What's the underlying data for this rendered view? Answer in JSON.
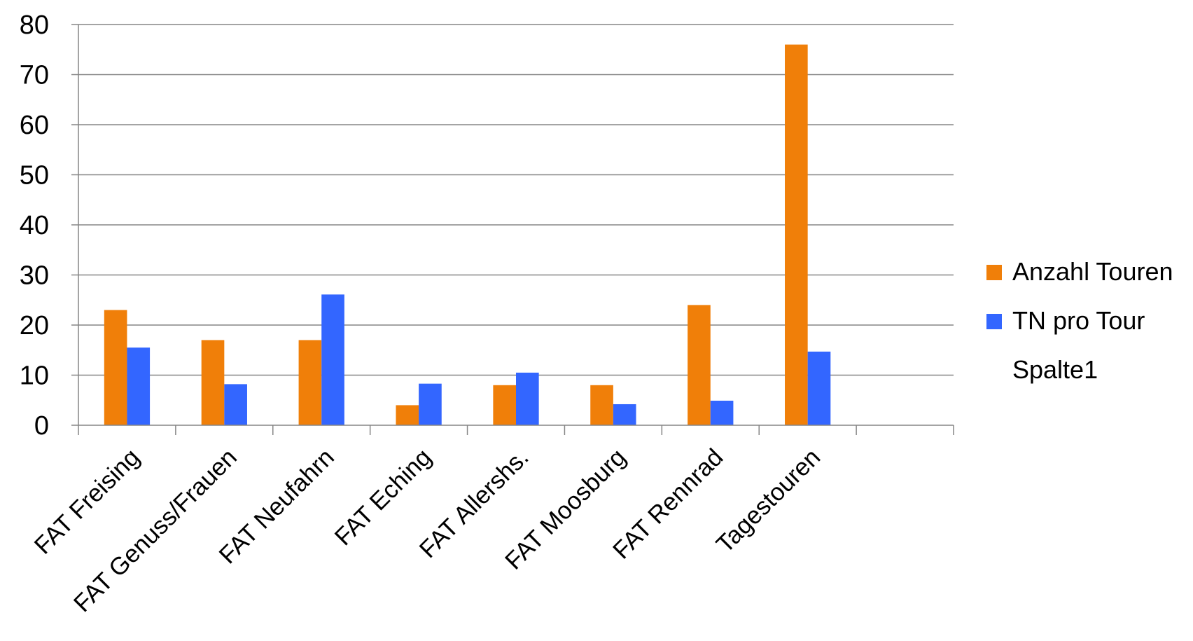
{
  "chart_data": {
    "type": "bar",
    "categories": [
      "FAT Freising",
      "FAT Genuss/Frauen",
      "FAT Neufahrn",
      "FAT Eching",
      "FAT Allershs.",
      "FAT Moosburg",
      "FAT Rennrad",
      "Tagestouren",
      ""
    ],
    "series": [
      {
        "name": "Anzahl Touren",
        "color": "#f07f09",
        "values": [
          23,
          17,
          17,
          4,
          8,
          8,
          24,
          76,
          null
        ]
      },
      {
        "name": "TN pro Tour",
        "color": "#3366ff",
        "values": [
          15.5,
          8.2,
          26.1,
          8.3,
          10.5,
          4.2,
          4.9,
          14.7,
          null
        ]
      },
      {
        "name": "Spalte1",
        "color": null,
        "values": [
          null,
          null,
          null,
          null,
          null,
          null,
          null,
          null,
          null
        ]
      }
    ],
    "ylim": [
      0,
      80
    ],
    "yticks": [
      0,
      10,
      20,
      30,
      40,
      50,
      60,
      70,
      80
    ],
    "grid": true,
    "legend": "right",
    "title": "",
    "xlabel": "",
    "ylabel": ""
  }
}
